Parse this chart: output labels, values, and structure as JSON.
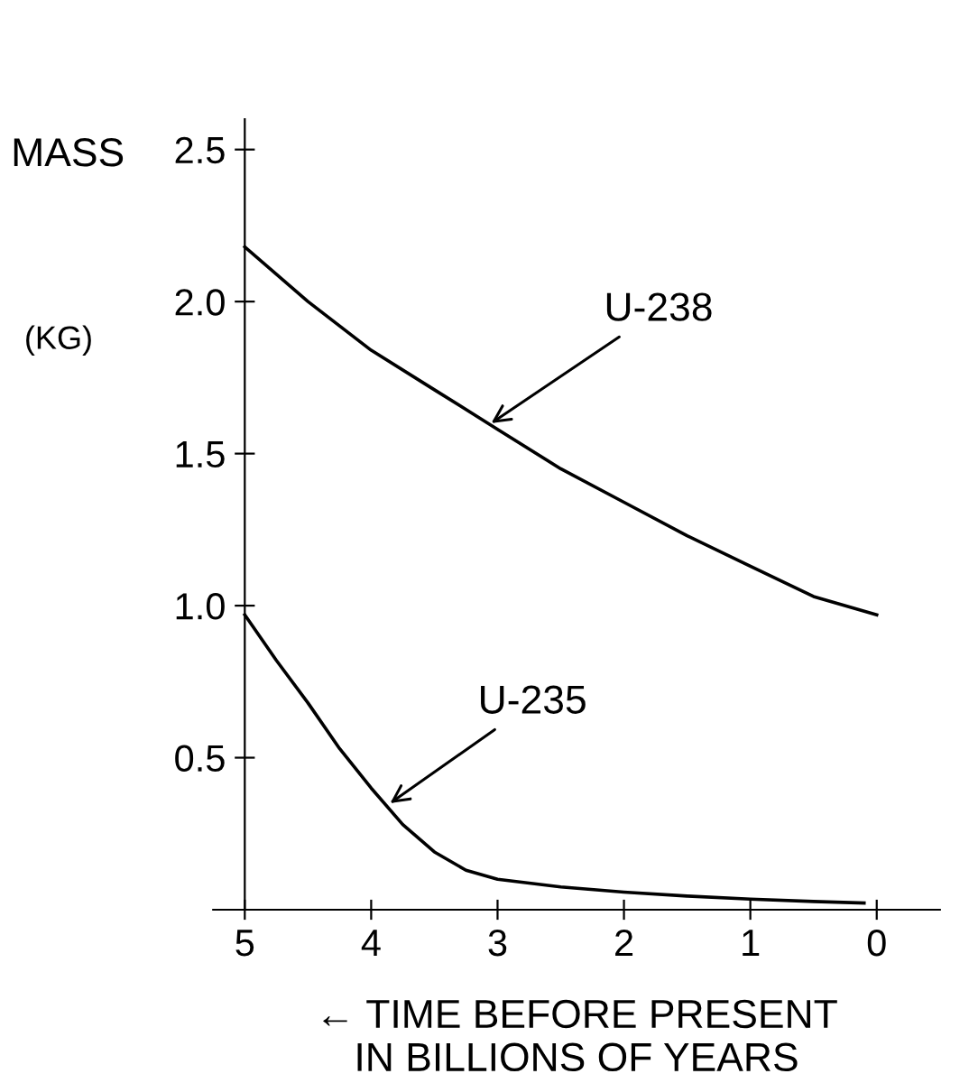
{
  "chart_data": {
    "type": "line",
    "ylabel": "MASS",
    "xlabel": "← TIME BEFORE PRESENT\nIN BILLIONS OF YEARS",
    "xlim": [
      5.25,
      -0.5
    ],
    "ylim": [
      0,
      2.6
    ],
    "xticks": [
      5,
      4,
      3,
      2,
      1,
      0
    ],
    "yticks": [
      0.5,
      {
        "value": 1.0,
        "label": "1.0"
      },
      1.5,
      {
        "value": 2.0,
        "label": "2.0"
      },
      2.5
    ],
    "grid": false,
    "marker": "none",
    "line_style": "solid",
    "annotations": [
      "(KG)",
      {
        "text": "U-238",
        "x": 3.05,
        "y": 1.6
      },
      {
        "text": "U-235",
        "x": 3.85,
        "y": 0.35
      }
    ],
    "series": [
      {
        "color": "#000000",
        "x": [
          5,
          4.5,
          4,
          3.5,
          3,
          2.5,
          2,
          1.5,
          1,
          0.5,
          0
        ],
        "values": [
          2.18,
          2.0,
          1.84,
          1.71,
          1.58,
          1.45,
          1.34,
          1.23,
          1.13,
          1.03,
          0.97
        ]
      },
      {
        "color": "#000000",
        "x": [
          5,
          4.75,
          4.5,
          4.25,
          4,
          3.75,
          3.5,
          3.25,
          3,
          2.5,
          2,
          1.5,
          1,
          0.5,
          0.1
        ],
        "values": [
          0.97,
          0.82,
          0.68,
          0.53,
          0.4,
          0.28,
          0.19,
          0.13,
          0.1,
          0.075,
          0.058,
          0.045,
          0.035,
          0.027,
          0.022
        ]
      }
    ]
  }
}
